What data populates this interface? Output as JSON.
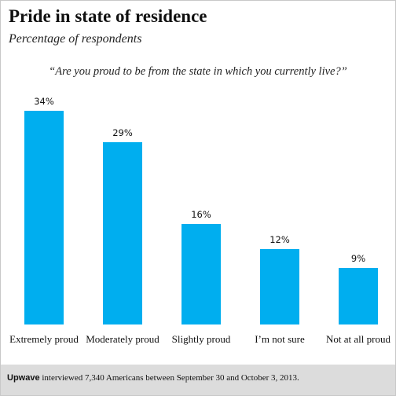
{
  "colors": {
    "bar": "#00aeef",
    "footer_bg": "#dcdcdc",
    "text": "#111111"
  },
  "chart_data": {
    "type": "bar",
    "title": "Pride in state of residence",
    "subtitle": "Percentage of respondents",
    "question": "“Are you proud to be from the state in which you currently live?”",
    "categories": [
      "Extremely proud",
      "Moderately proud",
      "Slightly proud",
      "I’m not sure",
      "Not at all proud"
    ],
    "values": [
      34,
      29,
      16,
      12,
      9
    ],
    "value_labels": [
      "34%",
      "29%",
      "16%",
      "12%",
      "9%"
    ],
    "unit": "%",
    "grid": false,
    "legend": "none"
  },
  "footer": {
    "brand": "Upwave",
    "text": " interviewed 7,340 Americans between September 30 and October 3, 2013."
  }
}
